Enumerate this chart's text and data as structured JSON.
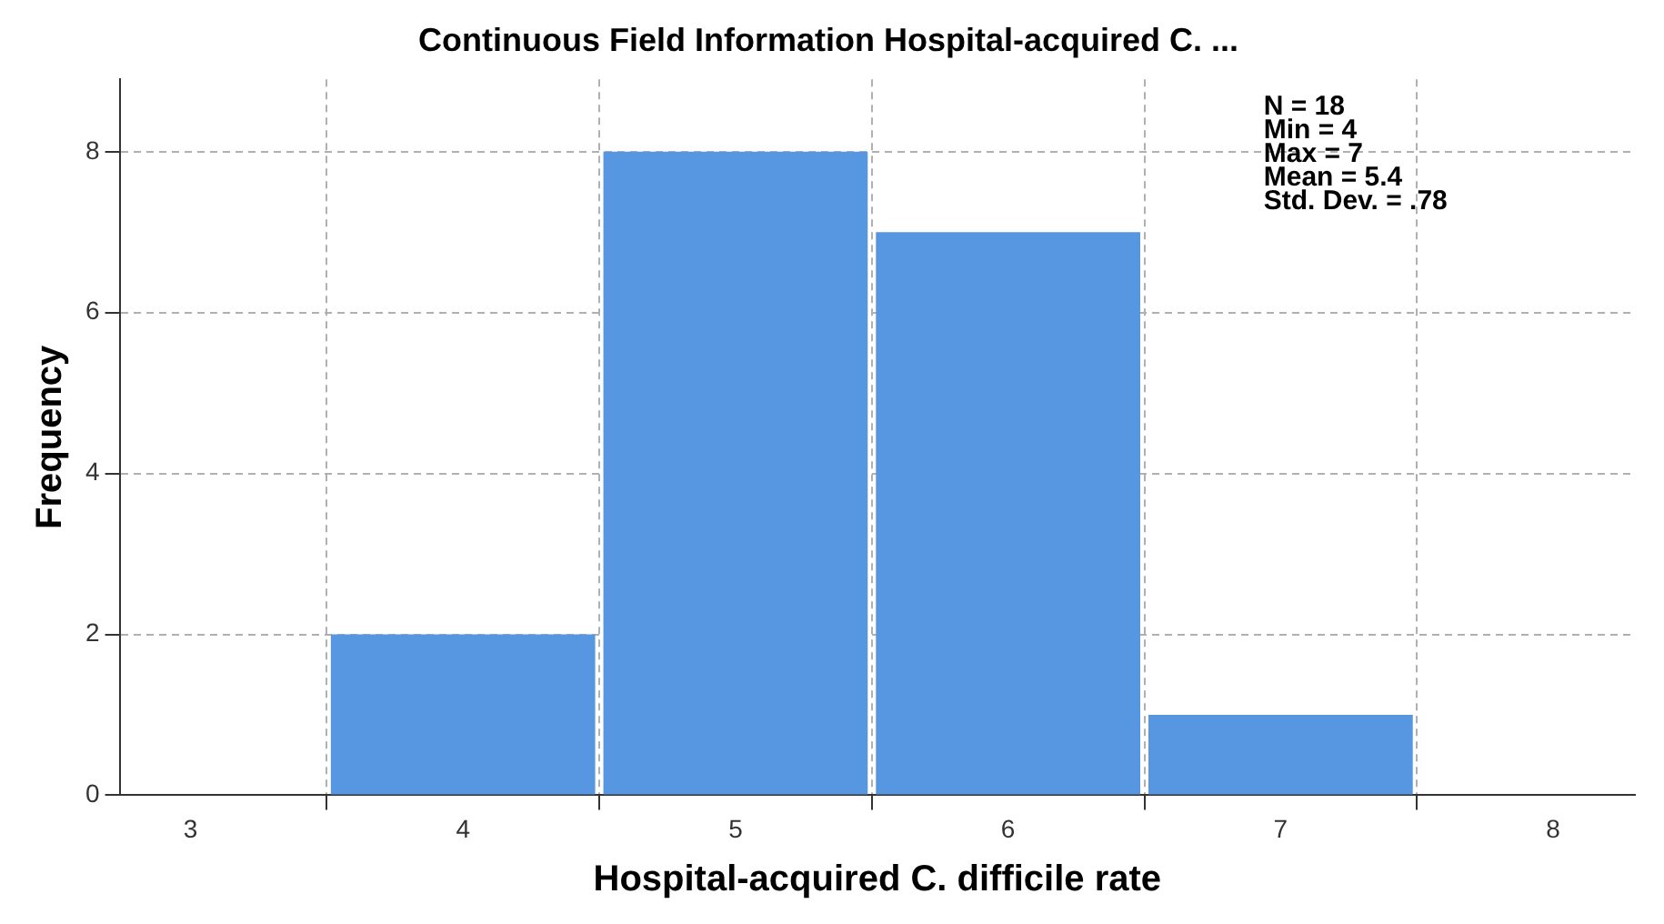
{
  "chart_data": {
    "type": "histogram",
    "title": "Continuous Field Information Hospital-acquired C. ...",
    "xlabel": "Hospital-acquired C. difficile rate",
    "ylabel": "Frequency",
    "bins": [
      3.5,
      4.5,
      5.5,
      6.5,
      7.5
    ],
    "values": [
      2,
      8,
      7,
      1
    ],
    "color": "#5797e2",
    "xlim": [
      2.74,
      8.3
    ],
    "xticks": [
      3,
      4,
      5,
      6,
      7,
      8
    ],
    "ylim": [
      0,
      8.9
    ],
    "yticks": [
      0,
      2,
      4,
      6,
      8
    ],
    "grid": true,
    "annotations": [
      "N = 18",
      "Min = 4",
      "Max = 7",
      "Mean = 5.4",
      "Std. Dev. = .78"
    ]
  }
}
